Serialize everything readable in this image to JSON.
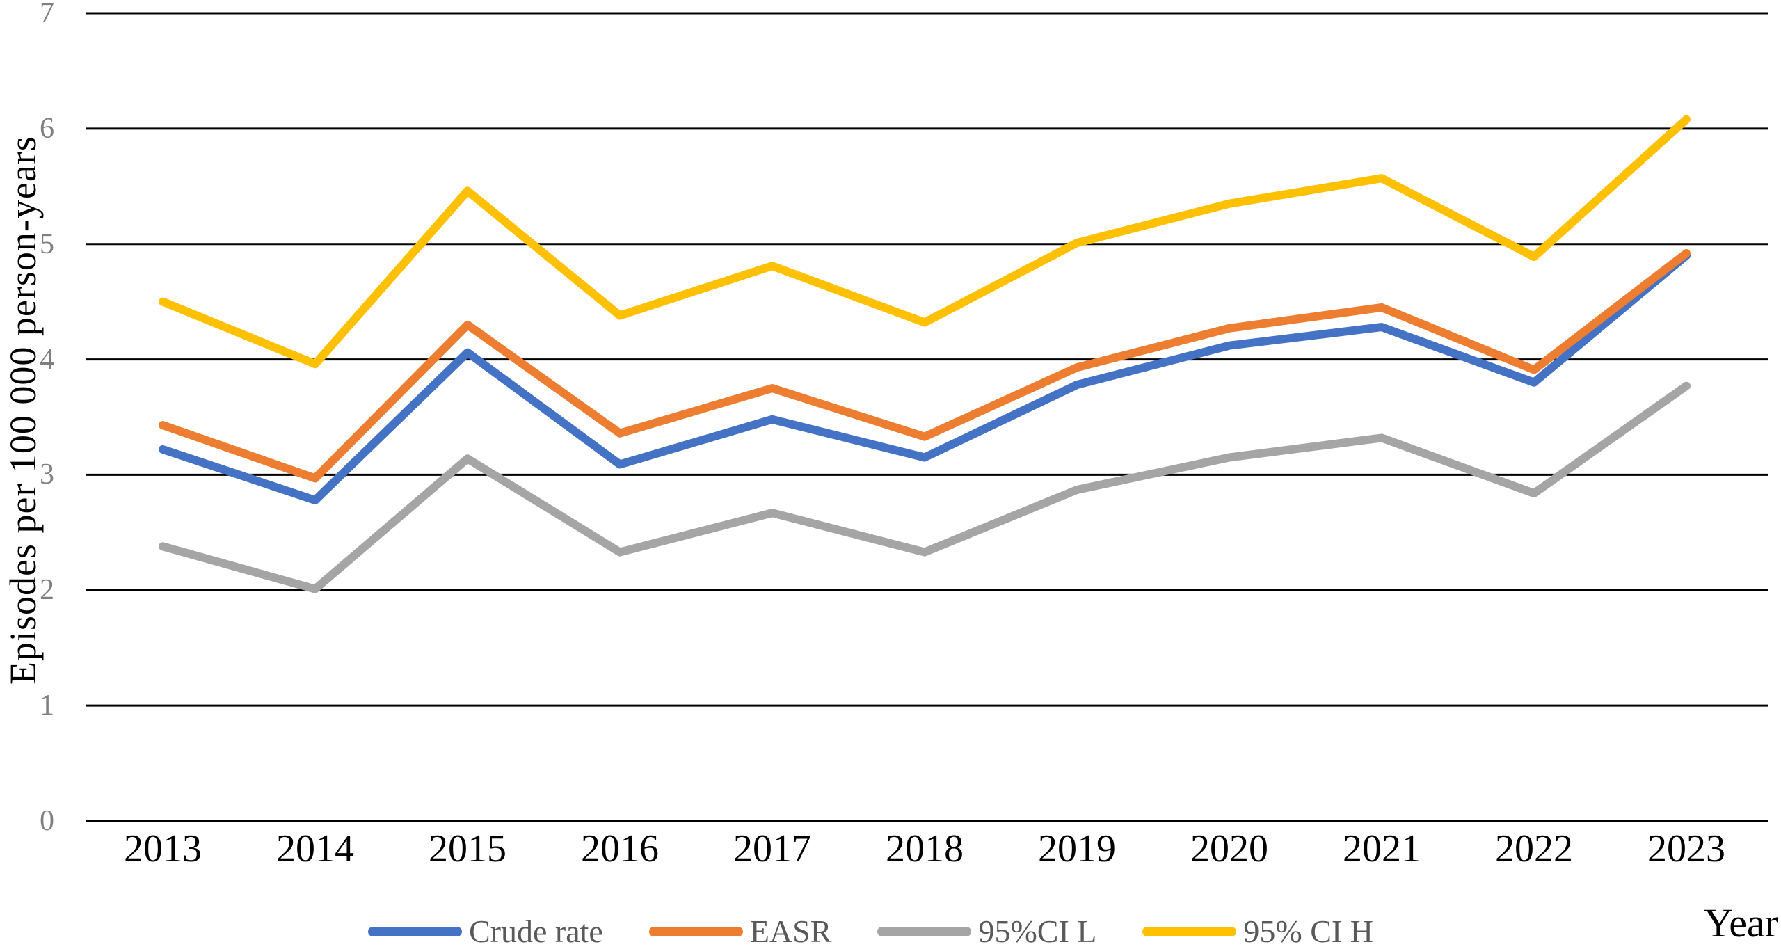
{
  "chart_data": {
    "type": "line",
    "title": "",
    "categories": [
      "2013",
      "2014",
      "2015",
      "2016",
      "2017",
      "2018",
      "2019",
      "2020",
      "2021",
      "2022",
      "2023"
    ],
    "yticks": [
      "0",
      "1",
      "2",
      "3",
      "4",
      "5",
      "6",
      "7"
    ],
    "ylim": [
      0,
      7
    ],
    "ytick_step": 1,
    "xlabel": "Year",
    "ylabel": "Episodes per 100 000 person-years",
    "grid": "horizontal",
    "legend_position": "bottom",
    "colors": {
      "gridline": "#000000",
      "tick_label": "#7f7f7f",
      "category_label": "#000000",
      "legend_text": "#595959",
      "background": "#ffffff"
    },
    "series": [
      {
        "name": "Crude rate",
        "color": "#4472C4",
        "values": [
          3.22,
          2.78,
          4.06,
          3.09,
          3.48,
          3.15,
          3.78,
          4.12,
          4.28,
          3.8,
          4.9
        ]
      },
      {
        "name": "EASR",
        "color": "#ED7D31",
        "values": [
          3.43,
          2.97,
          4.3,
          3.36,
          3.75,
          3.33,
          3.93,
          4.27,
          4.45,
          3.91,
          4.92
        ]
      },
      {
        "name": "95%CI L",
        "color": "#A5A5A5",
        "values": [
          2.38,
          2.01,
          3.14,
          2.33,
          2.67,
          2.33,
          2.87,
          3.15,
          3.32,
          2.84,
          3.77
        ]
      },
      {
        "name": "95% CI H",
        "color": "#FFC000",
        "values": [
          4.5,
          3.96,
          5.46,
          4.38,
          4.81,
          4.32,
          5.01,
          5.35,
          5.57,
          4.89,
          6.08
        ]
      }
    ]
  }
}
